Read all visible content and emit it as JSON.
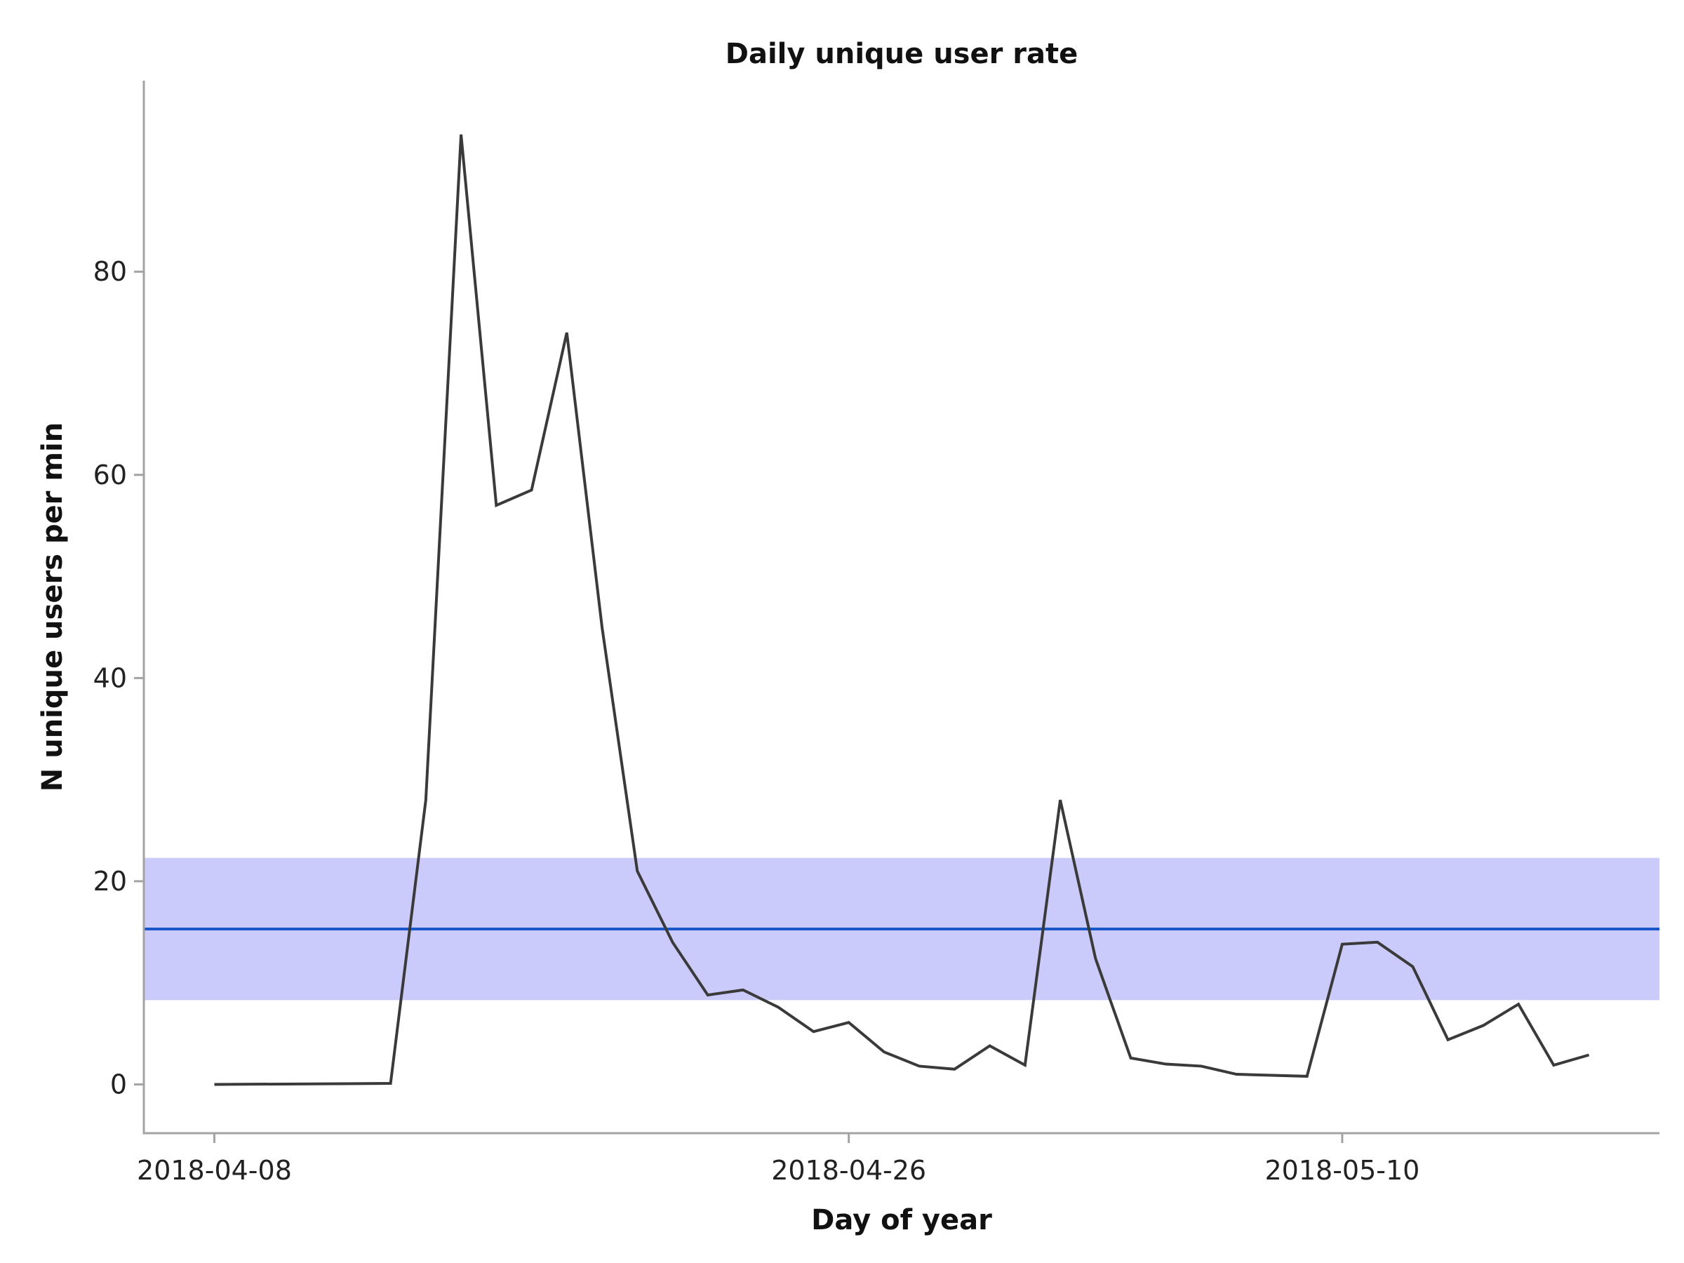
{
  "chart_data": {
    "type": "line",
    "title": "Daily unique user rate",
    "xlabel": "Day of year",
    "ylabel": "N unique users per min",
    "x_axis": {
      "type": "date",
      "range": [
        "2018-04-06",
        "2018-05-19"
      ],
      "ticks": [
        "2018-04-08",
        "2018-04-26",
        "2018-05-10"
      ]
    },
    "y_axis": {
      "range": [
        -4.8,
        98.8
      ],
      "ticks": [
        0,
        20,
        40,
        60,
        80
      ]
    },
    "grid": false,
    "legend": "none",
    "reference_band": {
      "low": 8.3,
      "high": 22.3,
      "color": "#cbcbfb"
    },
    "reference_line": {
      "value": 15.3,
      "color": "#1957c8"
    },
    "series": [
      {
        "color": "#3a3a3a",
        "points": [
          {
            "x": "2018-04-08",
            "y": 0
          },
          {
            "x": "2018-04-13",
            "y": 0.1
          },
          {
            "x": "2018-04-14",
            "y": 28
          },
          {
            "x": "2018-04-15",
            "y": 93.5
          },
          {
            "x": "2018-04-16",
            "y": 57
          },
          {
            "x": "2018-04-17",
            "y": 58.5
          },
          {
            "x": "2018-04-18",
            "y": 74
          },
          {
            "x": "2018-04-19",
            "y": 45
          },
          {
            "x": "2018-04-20",
            "y": 21
          },
          {
            "x": "2018-04-21",
            "y": 14
          },
          {
            "x": "2018-04-22",
            "y": 8.8
          },
          {
            "x": "2018-04-23",
            "y": 9.3
          },
          {
            "x": "2018-04-24",
            "y": 7.6
          },
          {
            "x": "2018-04-25",
            "y": 5.2
          },
          {
            "x": "2018-04-26",
            "y": 6.1
          },
          {
            "x": "2018-04-27",
            "y": 3.2
          },
          {
            "x": "2018-04-28",
            "y": 1.8
          },
          {
            "x": "2018-04-29",
            "y": 1.5
          },
          {
            "x": "2018-04-30",
            "y": 3.8
          },
          {
            "x": "2018-05-01",
            "y": 1.9
          },
          {
            "x": "2018-05-02",
            "y": 28
          },
          {
            "x": "2018-05-03",
            "y": 12.4
          },
          {
            "x": "2018-05-04",
            "y": 2.6
          },
          {
            "x": "2018-05-05",
            "y": 2
          },
          {
            "x": "2018-05-06",
            "y": 1.8
          },
          {
            "x": "2018-05-07",
            "y": 1
          },
          {
            "x": "2018-05-09",
            "y": 0.8
          },
          {
            "x": "2018-05-10",
            "y": 13.8
          },
          {
            "x": "2018-05-11",
            "y": 14
          },
          {
            "x": "2018-05-12",
            "y": 11.6
          },
          {
            "x": "2018-05-13",
            "y": 4.4
          },
          {
            "x": "2018-05-14",
            "y": 5.8
          },
          {
            "x": "2018-05-15",
            "y": 7.9
          },
          {
            "x": "2018-05-16",
            "y": 1.9
          },
          {
            "x": "2018-05-17",
            "y": 2.9
          }
        ]
      }
    ]
  }
}
